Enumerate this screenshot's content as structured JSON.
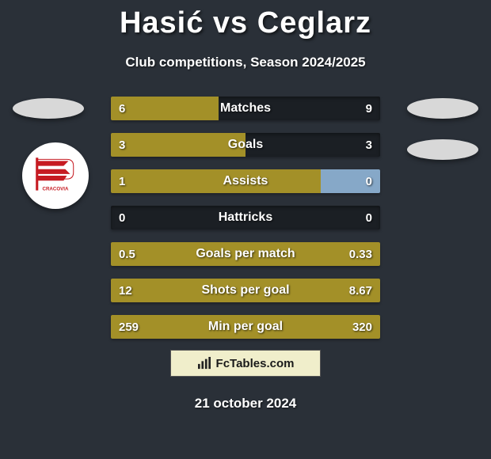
{
  "title": "Hasić vs Ceglarz",
  "subtitle": "Club competitions, Season 2024/2025",
  "date": "21 october 2024",
  "brand": {
    "name": "FcTables.com",
    "icon": "chart-bars-icon"
  },
  "colors": {
    "background": "#2a3038",
    "bar_left_fill": "#a39028",
    "bar_right_fill": "#86a8c8",
    "bar_track": "rgba(0,0,0,0.35)",
    "text": "#ffffff",
    "badge_bg": "#f0eecb",
    "ellipse": "#d8d8d8"
  },
  "club_badge": {
    "name": "cracovia-badge",
    "stripe_color": "#c61b22"
  },
  "stats": [
    {
      "label": "Matches",
      "left_val": "6",
      "right_val": "9",
      "left_w": 40,
      "right_w": 0
    },
    {
      "label": "Goals",
      "left_val": "3",
      "right_val": "3",
      "left_w": 50,
      "right_w": 0
    },
    {
      "label": "Assists",
      "left_val": "1",
      "right_val": "0",
      "left_w": 78,
      "right_w": 22
    },
    {
      "label": "Hattricks",
      "left_val": "0",
      "right_val": "0",
      "left_w": 0,
      "right_w": 0
    },
    {
      "label": "Goals per match",
      "left_val": "0.5",
      "right_val": "0.33",
      "left_w": 100,
      "right_w": 0
    },
    {
      "label": "Shots per goal",
      "left_val": "12",
      "right_val": "8.67",
      "left_w": 100,
      "right_w": 0
    },
    {
      "label": "Min per goal",
      "left_val": "259",
      "right_val": "320",
      "left_w": 100,
      "right_w": 0
    }
  ]
}
